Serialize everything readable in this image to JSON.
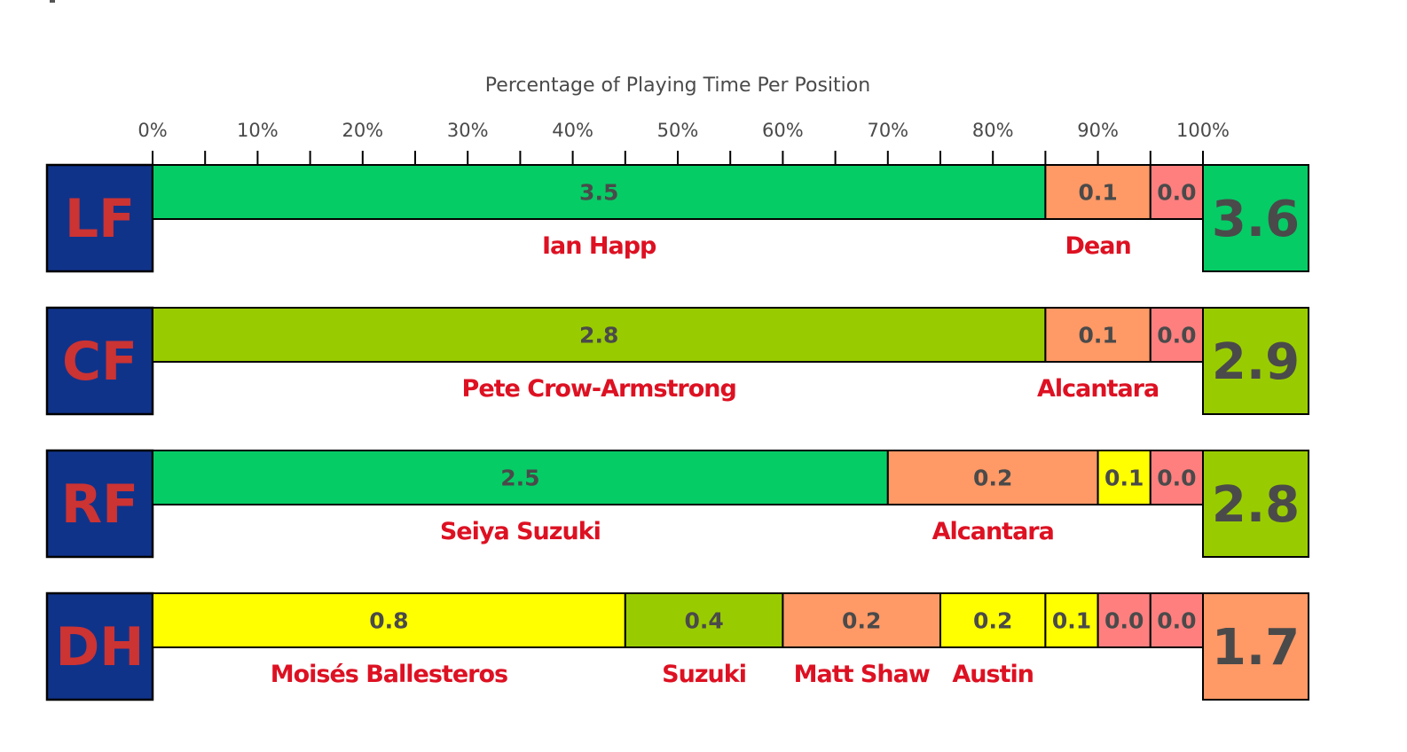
{
  "chart_data": {
    "type": "bar",
    "orientation": "horizontal-stacked",
    "title": "Percentage of Playing Time Per Position",
    "xlim": [
      0,
      100
    ],
    "x_ticks": [
      "0%",
      "10%",
      "20%",
      "30%",
      "40%",
      "50%",
      "60%",
      "70%",
      "80%",
      "90%",
      "100%"
    ],
    "colors": {
      "position_bg": "#10338a",
      "position_text": "#cc3333",
      "name_text": "#dd1122",
      "value_text": "#4a4a4a"
    },
    "positions": [
      {
        "label": "LF",
        "total": "3.6",
        "total_color": "#06cc66",
        "segments": [
          {
            "pct": 85,
            "value": "3.5",
            "color": "#06cc66",
            "name": "Ian Happ"
          },
          {
            "pct": 10,
            "value": "0.1",
            "color": "#ff9966",
            "name": "Dean"
          },
          {
            "pct": 5,
            "value": "0.0",
            "color": "#ff7f7f",
            "name": ""
          }
        ]
      },
      {
        "label": "CF",
        "total": "2.9",
        "total_color": "#99cc00",
        "segments": [
          {
            "pct": 85,
            "value": "2.8",
            "color": "#99cc00",
            "name": "Pete Crow-Armstrong"
          },
          {
            "pct": 10,
            "value": "0.1",
            "color": "#ff9966",
            "name": "Alcantara"
          },
          {
            "pct": 5,
            "value": "0.0",
            "color": "#ff7f7f",
            "name": ""
          }
        ]
      },
      {
        "label": "RF",
        "total": "2.8",
        "total_color": "#99cc00",
        "segments": [
          {
            "pct": 70,
            "value": "2.5",
            "color": "#06cc66",
            "name": "Seiya Suzuki"
          },
          {
            "pct": 20,
            "value": "0.2",
            "color": "#ff9966",
            "name": "Alcantara"
          },
          {
            "pct": 5,
            "value": "0.1",
            "color": "#ffff00",
            "name": ""
          },
          {
            "pct": 5,
            "value": "0.0",
            "color": "#ff7f7f",
            "name": ""
          }
        ]
      },
      {
        "label": "DH",
        "total": "1.7",
        "total_color": "#ff9966",
        "segments": [
          {
            "pct": 45,
            "value": "0.8",
            "color": "#ffff00",
            "name": "Moisés Ballesteros"
          },
          {
            "pct": 15,
            "value": "0.4",
            "color": "#99cc00",
            "name": "Suzuki"
          },
          {
            "pct": 15,
            "value": "0.2",
            "color": "#ff9966",
            "name": "Matt Shaw"
          },
          {
            "pct": 10,
            "value": "0.2",
            "color": "#ffff00",
            "name": "Austin"
          },
          {
            "pct": 5,
            "value": "0.1",
            "color": "#ffff00",
            "name": ""
          },
          {
            "pct": 5,
            "value": "0.0",
            "color": "#ff7f7f",
            "name": ""
          },
          {
            "pct": 5,
            "value": "0.0",
            "color": "#ff7f7f",
            "name": ""
          }
        ]
      }
    ]
  }
}
